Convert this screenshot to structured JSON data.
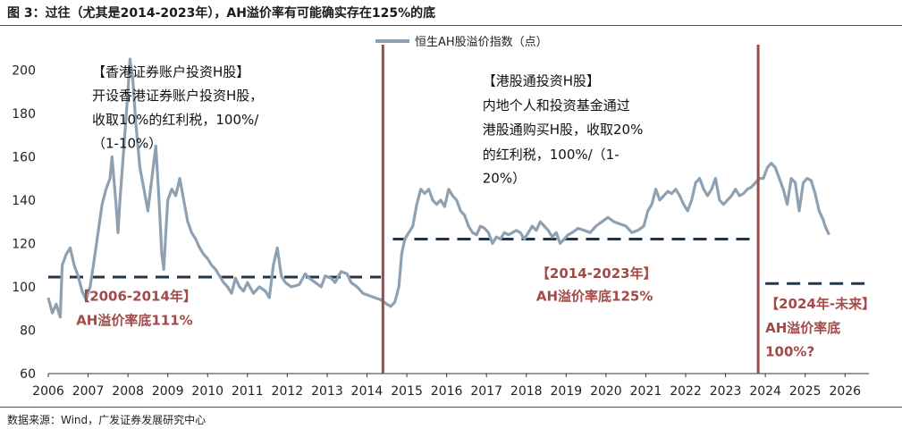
{
  "title": "图 3：过往（尤其是2014-2023年），AH溢价率有可能确实存在125%的底",
  "source": "数据来源：Wind，广发证券发展研究中心",
  "colors": {
    "series": "#8ea1b2",
    "threshold": "#233648",
    "divider": "#9e4a48",
    "red_text": "#a24a48"
  },
  "chart_data": {
    "type": "line",
    "ylim": [
      60,
      210
    ],
    "yticks": [
      60,
      80,
      100,
      120,
      140,
      160,
      180,
      200
    ],
    "xlim": [
      2006,
      2026.6
    ],
    "xticks": [
      2006,
      2007,
      2008,
      2009,
      2010,
      2011,
      2012,
      2013,
      2014,
      2015,
      2016,
      2017,
      2018,
      2019,
      2020,
      2021,
      2022,
      2023,
      2024,
      2025,
      2026
    ],
    "legend": {
      "label": "恒生AH股溢价指数（点）",
      "position": "top-center"
    },
    "series": [
      {
        "name": "恒生AH股溢价指数（点）",
        "points": [
          [
            2006.0,
            95
          ],
          [
            2006.1,
            88
          ],
          [
            2006.2,
            92
          ],
          [
            2006.3,
            86
          ],
          [
            2006.35,
            110
          ],
          [
            2006.45,
            115
          ],
          [
            2006.55,
            118
          ],
          [
            2006.65,
            110
          ],
          [
            2006.75,
            105
          ],
          [
            2006.85,
            98
          ],
          [
            2006.95,
            94
          ],
          [
            2007.05,
            100
          ],
          [
            2007.15,
            112
          ],
          [
            2007.25,
            125
          ],
          [
            2007.35,
            138
          ],
          [
            2007.45,
            145
          ],
          [
            2007.55,
            150
          ],
          [
            2007.6,
            160
          ],
          [
            2007.7,
            138
          ],
          [
            2007.75,
            125
          ],
          [
            2007.8,
            140
          ],
          [
            2007.9,
            165
          ],
          [
            2008.0,
            190
          ],
          [
            2008.05,
            205
          ],
          [
            2008.12,
            196
          ],
          [
            2008.2,
            175
          ],
          [
            2008.3,
            155
          ],
          [
            2008.4,
            145
          ],
          [
            2008.5,
            135
          ],
          [
            2008.6,
            150
          ],
          [
            2008.7,
            165
          ],
          [
            2008.78,
            140
          ],
          [
            2008.85,
            115
          ],
          [
            2008.9,
            108
          ],
          [
            2008.95,
            125
          ],
          [
            2009.0,
            140
          ],
          [
            2009.1,
            145
          ],
          [
            2009.2,
            142
          ],
          [
            2009.3,
            150
          ],
          [
            2009.4,
            140
          ],
          [
            2009.5,
            130
          ],
          [
            2009.6,
            125
          ],
          [
            2009.7,
            122
          ],
          [
            2009.8,
            118
          ],
          [
            2009.9,
            115
          ],
          [
            2010.0,
            113
          ],
          [
            2010.1,
            110
          ],
          [
            2010.2,
            108
          ],
          [
            2010.3,
            105
          ],
          [
            2010.4,
            102
          ],
          [
            2010.5,
            100
          ],
          [
            2010.6,
            97
          ],
          [
            2010.7,
            104
          ],
          [
            2010.8,
            100
          ],
          [
            2010.9,
            98
          ],
          [
            2011.0,
            102
          ],
          [
            2011.15,
            97
          ],
          [
            2011.3,
            100
          ],
          [
            2011.45,
            98
          ],
          [
            2011.55,
            95
          ],
          [
            2011.65,
            110
          ],
          [
            2011.75,
            118
          ],
          [
            2011.85,
            105
          ],
          [
            2011.95,
            102
          ],
          [
            2012.1,
            100
          ],
          [
            2012.3,
            101
          ],
          [
            2012.45,
            106
          ],
          [
            2012.55,
            104
          ],
          [
            2012.7,
            102
          ],
          [
            2012.85,
            100
          ],
          [
            2012.95,
            105
          ],
          [
            2013.1,
            104
          ],
          [
            2013.2,
            102
          ],
          [
            2013.35,
            107
          ],
          [
            2013.5,
            106
          ],
          [
            2013.6,
            102
          ],
          [
            2013.75,
            100
          ],
          [
            2013.9,
            97
          ],
          [
            2014.05,
            96
          ],
          [
            2014.2,
            95
          ],
          [
            2014.35,
            94
          ],
          [
            2014.5,
            92
          ],
          [
            2014.6,
            91
          ],
          [
            2014.7,
            93
          ],
          [
            2014.8,
            100
          ],
          [
            2014.87,
            115
          ],
          [
            2014.95,
            122
          ],
          [
            2015.05,
            125
          ],
          [
            2015.15,
            128
          ],
          [
            2015.25,
            138
          ],
          [
            2015.35,
            145
          ],
          [
            2015.45,
            143
          ],
          [
            2015.55,
            145
          ],
          [
            2015.65,
            140
          ],
          [
            2015.75,
            138
          ],
          [
            2015.85,
            140
          ],
          [
            2015.95,
            137
          ],
          [
            2016.05,
            145
          ],
          [
            2016.15,
            142
          ],
          [
            2016.25,
            140
          ],
          [
            2016.35,
            135
          ],
          [
            2016.45,
            133
          ],
          [
            2016.55,
            128
          ],
          [
            2016.65,
            125
          ],
          [
            2016.75,
            124
          ],
          [
            2016.85,
            128
          ],
          [
            2016.95,
            127
          ],
          [
            2017.05,
            125
          ],
          [
            2017.15,
            120
          ],
          [
            2017.25,
            123
          ],
          [
            2017.35,
            122
          ],
          [
            2017.45,
            125
          ],
          [
            2017.55,
            124
          ],
          [
            2017.65,
            125
          ],
          [
            2017.75,
            126
          ],
          [
            2017.85,
            125
          ],
          [
            2017.95,
            122
          ],
          [
            2018.05,
            125
          ],
          [
            2018.15,
            128
          ],
          [
            2018.25,
            126
          ],
          [
            2018.35,
            130
          ],
          [
            2018.45,
            128
          ],
          [
            2018.55,
            126
          ],
          [
            2018.65,
            123
          ],
          [
            2018.75,
            125
          ],
          [
            2018.85,
            120
          ],
          [
            2018.95,
            122
          ],
          [
            2019.05,
            124
          ],
          [
            2019.15,
            125
          ],
          [
            2019.3,
            127
          ],
          [
            2019.45,
            126
          ],
          [
            2019.6,
            125
          ],
          [
            2019.75,
            128
          ],
          [
            2019.9,
            130
          ],
          [
            2020.05,
            132
          ],
          [
            2020.2,
            130
          ],
          [
            2020.35,
            129
          ],
          [
            2020.5,
            128
          ],
          [
            2020.65,
            125
          ],
          [
            2020.8,
            126
          ],
          [
            2020.95,
            128
          ],
          [
            2021.05,
            135
          ],
          [
            2021.15,
            138
          ],
          [
            2021.25,
            145
          ],
          [
            2021.35,
            140
          ],
          [
            2021.45,
            142
          ],
          [
            2021.55,
            144
          ],
          [
            2021.65,
            143
          ],
          [
            2021.75,
            145
          ],
          [
            2021.85,
            142
          ],
          [
            2021.95,
            138
          ],
          [
            2022.05,
            135
          ],
          [
            2022.15,
            140
          ],
          [
            2022.25,
            148
          ],
          [
            2022.35,
            150
          ],
          [
            2022.45,
            145
          ],
          [
            2022.55,
            142
          ],
          [
            2022.65,
            145
          ],
          [
            2022.75,
            150
          ],
          [
            2022.85,
            140
          ],
          [
            2022.95,
            138
          ],
          [
            2023.05,
            140
          ],
          [
            2023.15,
            142
          ],
          [
            2023.25,
            145
          ],
          [
            2023.35,
            142
          ],
          [
            2023.45,
            143
          ],
          [
            2023.55,
            145
          ],
          [
            2023.65,
            146
          ],
          [
            2023.75,
            148
          ],
          [
            2023.85,
            150
          ],
          [
            2023.95,
            150
          ],
          [
            2024.05,
            155
          ],
          [
            2024.15,
            157
          ],
          [
            2024.25,
            155
          ],
          [
            2024.35,
            150
          ],
          [
            2024.45,
            145
          ],
          [
            2024.55,
            138
          ],
          [
            2024.65,
            150
          ],
          [
            2024.75,
            148
          ],
          [
            2024.85,
            135
          ],
          [
            2024.95,
            148
          ],
          [
            2025.05,
            150
          ],
          [
            2025.15,
            149
          ],
          [
            2025.25,
            143
          ],
          [
            2025.35,
            135
          ],
          [
            2025.45,
            131
          ],
          [
            2025.5,
            128
          ],
          [
            2025.55,
            126
          ],
          [
            2025.6,
            124
          ]
        ]
      }
    ],
    "thresholds": [
      {
        "value": 104.5,
        "x_range": [
          2006.0,
          2014.35
        ]
      },
      {
        "value": 122,
        "x_range": [
          2014.65,
          2023.82
        ]
      },
      {
        "value": 101.5,
        "x_range": [
          2024.0,
          2026.6
        ]
      }
    ],
    "dividers": [
      2014.4,
      2023.82
    ],
    "annotations": [
      {
        "id": "hk-title",
        "style": "black",
        "anchor": [
          2007.1,
          197
        ],
        "text": "【香港证券账户投资H股】"
      },
      {
        "id": "hk-l1",
        "style": "black",
        "anchor": [
          2007.1,
          186
        ],
        "text": "开设香港证券账户投资H股，"
      },
      {
        "id": "hk-l2",
        "style": "black",
        "anchor": [
          2007.1,
          175
        ],
        "text": "收取10%的红利税，100%/"
      },
      {
        "id": "hk-l3",
        "style": "black",
        "anchor": [
          2007.1,
          164
        ],
        "text": "（1-10%）"
      },
      {
        "id": "sc-title",
        "style": "black",
        "anchor": [
          2016.9,
          193
        ],
        "text": "【港股通投资H股】"
      },
      {
        "id": "sc-l1",
        "style": "black",
        "anchor": [
          2016.9,
          181.5
        ],
        "text": "内地个人和投资基金通过"
      },
      {
        "id": "sc-l2",
        "style": "black",
        "anchor": [
          2016.9,
          170.5
        ],
        "text": "港股通购买H股，收取20%"
      },
      {
        "id": "sc-l3",
        "style": "black",
        "anchor": [
          2016.9,
          159
        ],
        "text": "的红利税，100%/（1-"
      },
      {
        "id": "sc-l4",
        "style": "black",
        "anchor": [
          2016.9,
          148
        ],
        "text": "20%）"
      },
      {
        "id": "r1-t",
        "style": "red",
        "anchor": [
          2006.7,
          93.5
        ],
        "text": "【2006-2014年】"
      },
      {
        "id": "r1-b",
        "style": "red",
        "anchor": [
          2006.7,
          82.5
        ],
        "text": "AH溢价率底111%"
      },
      {
        "id": "r2-t",
        "style": "red",
        "anchor": [
          2018.25,
          104
        ],
        "text": "【2014-2023年】"
      },
      {
        "id": "r2-b",
        "style": "red",
        "anchor": [
          2018.25,
          93.5
        ],
        "text": "AH溢价率底125%"
      },
      {
        "id": "r3-t",
        "style": "red",
        "anchor": [
          2024.0,
          90
        ],
        "text": "【2024年-未来】"
      },
      {
        "id": "r3-m",
        "style": "red",
        "anchor": [
          2024.0,
          79
        ],
        "text": "AH溢价率底"
      },
      {
        "id": "r3-b",
        "style": "red",
        "anchor": [
          2024.0,
          68
        ],
        "text": "100%?"
      }
    ]
  }
}
